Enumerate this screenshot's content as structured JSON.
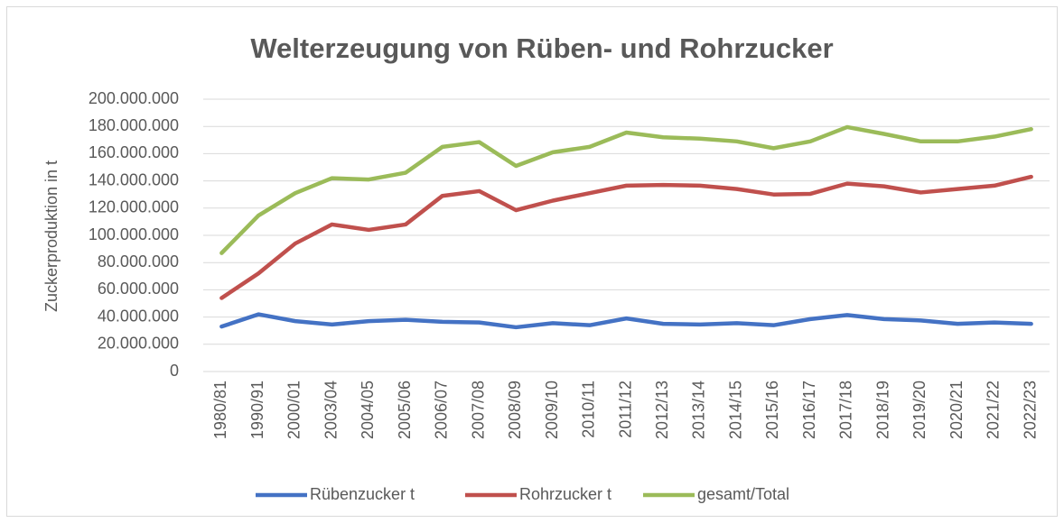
{
  "chart_data": {
    "type": "line",
    "title": "Welterzeugung von Rüben- und Rohrzucker",
    "y_label": "Zuckerproduktion in  t",
    "categories": [
      "1980/81",
      "1990/91",
      "2000/01",
      "2003/04",
      "2004/05",
      "2005/06",
      "2006/07",
      "2007/08",
      "2008/09",
      "2009/10",
      "2010/11",
      "2011/12",
      "2012/13",
      "2013/14",
      "2014/15",
      "2015/16",
      "2016/17",
      "2017/18",
      "2018/19",
      "2019/20",
      "2020/21",
      "2021/22",
      "2022/23"
    ],
    "series": [
      {
        "name": "Rübenzucker t",
        "color": "#4472c4",
        "values": [
          33000000,
          42000000,
          37000000,
          34500000,
          37000000,
          38000000,
          36500000,
          36000000,
          32500000,
          35500000,
          34000000,
          39000000,
          35000000,
          34500000,
          35500000,
          34000000,
          38500000,
          41500000,
          38500000,
          37500000,
          35000000,
          36000000,
          35000000
        ]
      },
      {
        "name": "Rohrzucker t",
        "color": "#c0504d",
        "values": [
          54000000,
          72000000,
          94000000,
          108000000,
          104000000,
          108000000,
          129000000,
          132500000,
          118500000,
          125500000,
          131000000,
          136500000,
          137000000,
          136500000,
          134000000,
          130000000,
          130500000,
          138000000,
          136000000,
          131500000,
          134000000,
          136500000,
          143000000
        ]
      },
      {
        "name": "gesamt/Total",
        "color": "#9bbb59",
        "values": [
          87000000,
          114500000,
          131000000,
          142000000,
          141000000,
          146000000,
          165000000,
          168500000,
          151000000,
          161000000,
          165000000,
          175500000,
          172000000,
          171000000,
          169000000,
          164000000,
          169000000,
          179500000,
          174500000,
          169000000,
          169000000,
          172500000,
          178000000
        ]
      }
    ],
    "ylim": [
      0,
      200000000
    ],
    "yticks": [
      0,
      {
        "value": 20000000,
        "label": "20.000.000"
      },
      {
        "value": 40000000,
        "label": "40.000.000"
      },
      {
        "value": 60000000,
        "label": "60.000.000"
      },
      {
        "value": 80000000,
        "label": "80.000.000"
      },
      {
        "value": 100000000,
        "label": "100.000.000"
      },
      {
        "value": 120000000,
        "label": "120.000.000"
      },
      {
        "value": 140000000,
        "label": "140.000.000"
      },
      {
        "value": 160000000,
        "label": "160.000.000"
      },
      {
        "value": 180000000,
        "label": "180.000.000"
      },
      {
        "value": 200000000,
        "label": "200.000.000"
      }
    ],
    "grid": true,
    "legend": "bottom"
  }
}
